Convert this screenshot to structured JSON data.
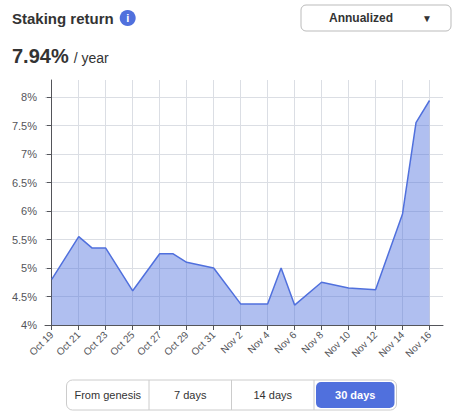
{
  "chart_data": {
    "type": "area",
    "title": "Staking return",
    "info_icon": "i",
    "subtitle": "7.94%",
    "subtitle_unit": "/ year",
    "dropdown": "Annualized",
    "dropdown_arrow": "▼",
    "tabs": [
      "From genesis",
      "7 days",
      "14 days",
      "30 days"
    ],
    "active_tab": "30 days",
    "x": [
      0,
      2,
      3,
      4,
      6,
      8,
      9,
      10,
      12,
      14,
      15,
      16,
      17,
      18,
      20,
      22,
      24,
      26,
      27,
      28
    ],
    "values": [
      4.8,
      5.55,
      5.35,
      5.35,
      4.6,
      5.25,
      5.25,
      5.1,
      5.0,
      4.37,
      4.37,
      4.37,
      5.0,
      4.35,
      4.75,
      4.65,
      4.62,
      5.95,
      7.55,
      7.94
    ],
    "xlim": [
      -0.5,
      29
    ],
    "xticks": [
      {
        "value": 0,
        "label": "Oct 19"
      },
      {
        "value": 2,
        "label": "Oct 21"
      },
      {
        "value": 4,
        "label": "Oct 23"
      },
      {
        "value": 6,
        "label": "Oct 25"
      },
      {
        "value": 8,
        "label": "Oct 27"
      },
      {
        "value": 10,
        "label": "Oct 29"
      },
      {
        "value": 12,
        "label": "Oct 31"
      },
      {
        "value": 14,
        "label": "Nov 2"
      },
      {
        "value": 16,
        "label": "Nov 4"
      },
      {
        "value": 18,
        "label": "Nov 6"
      },
      {
        "value": 20,
        "label": "Nov 8"
      },
      {
        "value": 22,
        "label": "Nov 10"
      },
      {
        "value": 24,
        "label": "Nov 12"
      },
      {
        "value": 26,
        "label": "Nov 14"
      },
      {
        "value": 28,
        "label": "Nov 16"
      }
    ],
    "ylim": [
      4.0,
      8.3
    ],
    "yticks": [
      {
        "value": 4.0,
        "label": "4%"
      },
      {
        "value": 4.5,
        "label": "4.5%"
      },
      {
        "value": 5.0,
        "label": "5%"
      },
      {
        "value": 5.5,
        "label": "5.5%"
      },
      {
        "value": 6.0,
        "label": "6%"
      },
      {
        "value": 6.5,
        "label": "6.5%"
      },
      {
        "value": 7.0,
        "label": "7%"
      },
      {
        "value": 7.5,
        "label": "7.5%"
      },
      {
        "value": 8.0,
        "label": "8%"
      }
    ],
    "grid": true
  }
}
